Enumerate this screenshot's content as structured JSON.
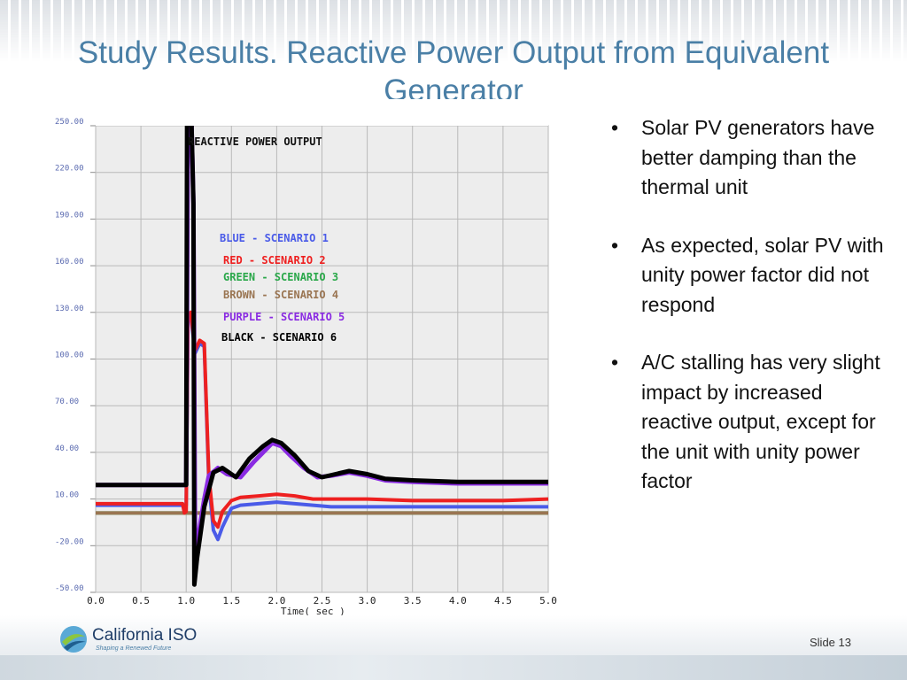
{
  "slide": {
    "title": "Study Results. Reactive Power Output from Equivalent Generator",
    "slide_number": "Slide 13",
    "logo": {
      "name": "California ISO",
      "tagline": "Shaping a Renewed Future"
    }
  },
  "bullets": [
    "Solar PV generators have better damping than the thermal unit",
    "As expected, solar PV with unity power factor did not respond",
    "A/C stalling has very slight impact by increased reactive output, except for the unit with unity power factor"
  ],
  "chart_data": {
    "type": "line",
    "title": "REACTIVE POWER OUTPUT",
    "xlabel": "Time( sec )",
    "ylabel": "",
    "xlim": [
      0,
      5
    ],
    "ylim": [
      -50,
      250
    ],
    "x_ticks": [
      "0.0",
      "0.5",
      "1.0",
      "1.5",
      "2.0",
      "2.5",
      "3.0",
      "3.5",
      "4.0",
      "4.5",
      "5.0"
    ],
    "y_ticks": [
      "250.00",
      "220.00",
      "190.00",
      "160.00",
      "130.00",
      "100.00",
      "70.00",
      "40.00",
      "10.00",
      "-20.00",
      "-50.00"
    ],
    "grid": true,
    "legend_position": "top-center",
    "series": [
      {
        "name": "BLUE - SCENARIO 1",
        "color": "#4a5be8",
        "points": [
          [
            0,
            6
          ],
          [
            0.97,
            6
          ],
          [
            1.0,
            6
          ],
          [
            1.02,
            126
          ],
          [
            1.05,
            128
          ],
          [
            1.1,
            104
          ],
          [
            1.15,
            110
          ],
          [
            1.2,
            108
          ],
          [
            1.25,
            20
          ],
          [
            1.3,
            -10
          ],
          [
            1.35,
            -16
          ],
          [
            1.4,
            -8
          ],
          [
            1.5,
            4
          ],
          [
            1.6,
            6
          ],
          [
            1.8,
            7
          ],
          [
            2.0,
            8
          ],
          [
            2.2,
            7
          ],
          [
            2.4,
            6
          ],
          [
            2.6,
            5
          ],
          [
            3.0,
            5
          ],
          [
            4.0,
            5
          ],
          [
            5.0,
            5
          ]
        ]
      },
      {
        "name": "RED - SCENARIO 2",
        "color": "#ee2020",
        "points": [
          [
            0,
            7
          ],
          [
            0.96,
            7
          ],
          [
            0.98,
            1
          ],
          [
            1.0,
            2
          ],
          [
            1.02,
            128
          ],
          [
            1.05,
            130
          ],
          [
            1.1,
            106
          ],
          [
            1.15,
            112
          ],
          [
            1.2,
            110
          ],
          [
            1.25,
            25
          ],
          [
            1.3,
            -4
          ],
          [
            1.35,
            -8
          ],
          [
            1.4,
            2
          ],
          [
            1.5,
            9
          ],
          [
            1.6,
            11
          ],
          [
            1.8,
            12
          ],
          [
            2.0,
            13
          ],
          [
            2.2,
            12
          ],
          [
            2.4,
            10
          ],
          [
            2.6,
            10
          ],
          [
            3.0,
            10
          ],
          [
            3.5,
            9
          ],
          [
            4.0,
            9
          ],
          [
            4.5,
            9
          ],
          [
            5.0,
            10
          ]
        ]
      },
      {
        "name": "GREEN - SCENARIO 3",
        "color": "#2aa84a",
        "points": [
          [
            0,
            1
          ],
          [
            5,
            1
          ]
        ]
      },
      {
        "name": "BROWN - SCENARIO 4",
        "color": "#9a7552",
        "points": [
          [
            0,
            1
          ],
          [
            5,
            1
          ]
        ]
      },
      {
        "name": "PURPLE - SCENARIO 5",
        "color": "#8a2be2",
        "points": [
          [
            0,
            19
          ],
          [
            0.97,
            19
          ],
          [
            1.0,
            19
          ],
          [
            1.02,
            255
          ],
          [
            1.06,
            250
          ],
          [
            1.08,
            200
          ],
          [
            1.1,
            -30
          ],
          [
            1.15,
            -8
          ],
          [
            1.2,
            10
          ],
          [
            1.25,
            25
          ],
          [
            1.35,
            30
          ],
          [
            1.45,
            26
          ],
          [
            1.6,
            24
          ],
          [
            1.75,
            34
          ],
          [
            1.85,
            40
          ],
          [
            1.95,
            46
          ],
          [
            2.05,
            44
          ],
          [
            2.15,
            38
          ],
          [
            2.3,
            30
          ],
          [
            2.45,
            24
          ],
          [
            2.6,
            25
          ],
          [
            2.8,
            27
          ],
          [
            3.0,
            25
          ],
          [
            3.2,
            22
          ],
          [
            3.5,
            21
          ],
          [
            4.0,
            20
          ],
          [
            4.5,
            20
          ],
          [
            5.0,
            20
          ]
        ]
      },
      {
        "name": "BLACK - SCENARIO 6",
        "color": "#000000",
        "points": [
          [
            0,
            19
          ],
          [
            0.97,
            19
          ],
          [
            1.0,
            19
          ],
          [
            1.01,
            255
          ],
          [
            1.06,
            250
          ],
          [
            1.08,
            200
          ],
          [
            1.09,
            -45
          ],
          [
            1.12,
            -28
          ],
          [
            1.2,
            5
          ],
          [
            1.3,
            27
          ],
          [
            1.4,
            30
          ],
          [
            1.55,
            24
          ],
          [
            1.7,
            36
          ],
          [
            1.85,
            44
          ],
          [
            1.95,
            48
          ],
          [
            2.05,
            46
          ],
          [
            2.2,
            38
          ],
          [
            2.35,
            28
          ],
          [
            2.5,
            24
          ],
          [
            2.65,
            26
          ],
          [
            2.8,
            28
          ],
          [
            3.0,
            26
          ],
          [
            3.2,
            23
          ],
          [
            3.5,
            22
          ],
          [
            4.0,
            21
          ],
          [
            4.5,
            21
          ],
          [
            5.0,
            21
          ]
        ]
      }
    ]
  }
}
